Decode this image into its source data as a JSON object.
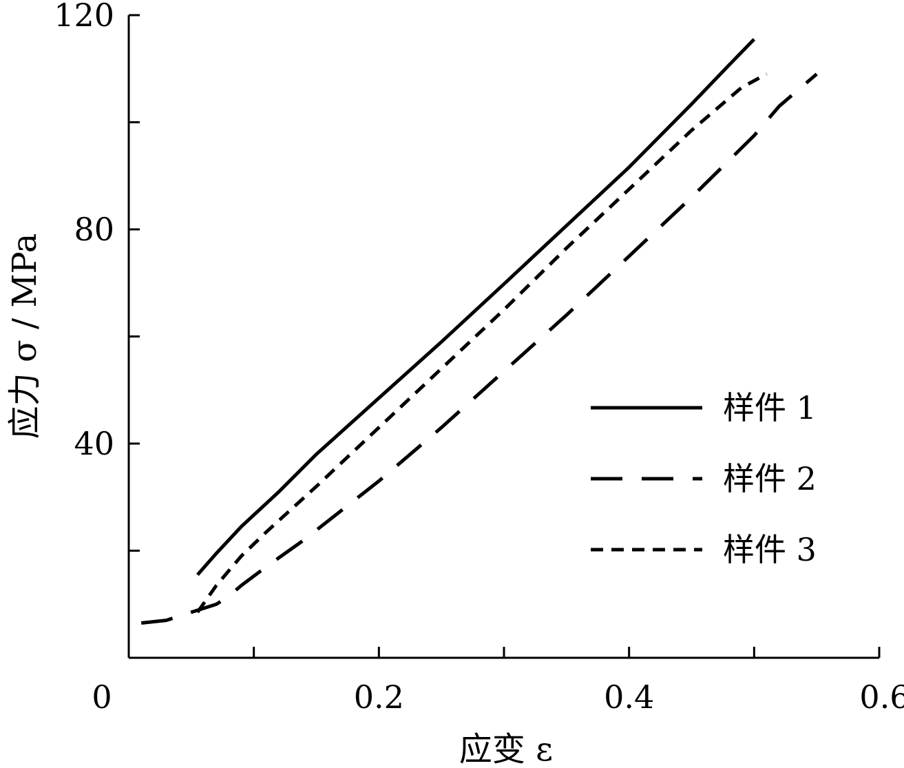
{
  "chart_data": {
    "type": "line",
    "xlabel": "应变 ε",
    "ylabel": "应力 σ / MPa",
    "xlim": [
      0,
      0.6
    ],
    "ylim": [
      0,
      120
    ],
    "x_ticks": [
      0,
      0.1,
      0.2,
      0.3,
      0.4,
      0.5,
      0.6
    ],
    "x_tick_labels": [
      "0",
      "",
      "0.2",
      "",
      "0.4",
      "",
      "0.6"
    ],
    "y_ticks": [
      0,
      20,
      40,
      60,
      80,
      100,
      120
    ],
    "y_tick_labels": [
      "",
      "",
      "40",
      "",
      "80",
      "",
      "120"
    ],
    "grid": false,
    "legend_position": "right",
    "series": [
      {
        "name": "样件 1",
        "dash": "solid",
        "x": [
          0.055,
          0.07,
          0.09,
          0.12,
          0.15,
          0.2,
          0.25,
          0.3,
          0.35,
          0.4,
          0.45,
          0.48,
          0.5
        ],
        "y": [
          15.5,
          19.5,
          24.5,
          31,
          38,
          48.5,
          59,
          69.8,
          80.7,
          91.6,
          103.4,
          110.7,
          115.5
        ]
      },
      {
        "name": "样件 2",
        "dash": "long",
        "x": [
          0.01,
          0.03,
          0.05,
          0.07,
          0.08,
          0.09,
          0.11,
          0.14,
          0.2,
          0.25,
          0.3,
          0.35,
          0.4,
          0.45,
          0.5,
          0.52,
          0.55
        ],
        "y": [
          6.5,
          7,
          8.5,
          10,
          11.5,
          13.5,
          17,
          22,
          33,
          43,
          53.5,
          64,
          75,
          86,
          97.5,
          103,
          109
        ]
      },
      {
        "name": "样件 3",
        "dash": "short",
        "x": [
          0.055,
          0.07,
          0.09,
          0.11,
          0.15,
          0.2,
          0.25,
          0.3,
          0.35,
          0.4,
          0.45,
          0.49,
          0.51
        ],
        "y": [
          8.5,
          13.5,
          19,
          23.5,
          32,
          43,
          54,
          65,
          76.5,
          87.5,
          98.5,
          106.5,
          109
        ]
      }
    ]
  }
}
